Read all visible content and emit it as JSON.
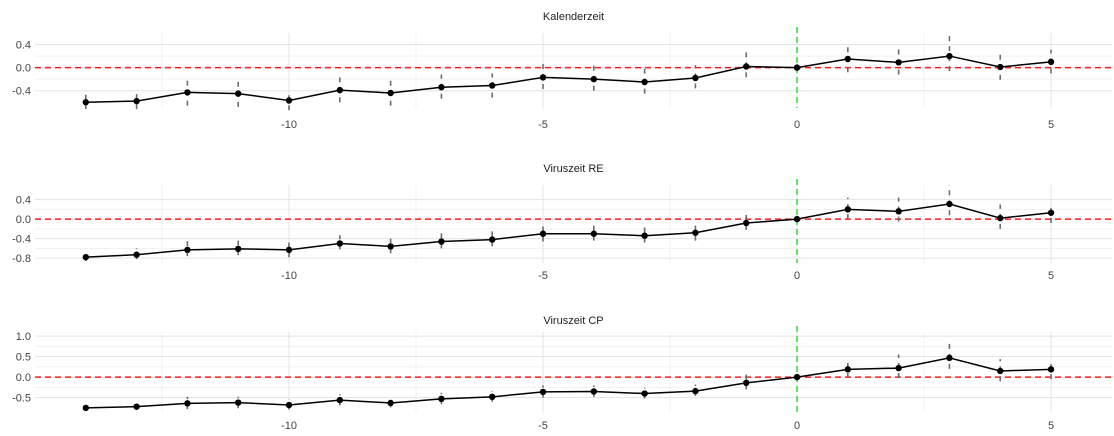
{
  "colors": {
    "line": "#000000",
    "errorbar": "#6b6b6b",
    "zero_line": "#ff1a1a",
    "event_line": "#22dd22",
    "grid_major": "#e3e3e3",
    "grid_minor": "#f1f1f1"
  },
  "chart_data": [
    {
      "type": "line",
      "title": "Kalenderzeit",
      "x": [
        -14,
        -13,
        -12,
        -11,
        -10,
        -9,
        -8,
        -7,
        -6,
        -5,
        -4,
        -3,
        -2,
        -1,
        0,
        1,
        2,
        3,
        4,
        5
      ],
      "y": [
        -0.6,
        -0.58,
        -0.43,
        -0.45,
        -0.57,
        -0.39,
        -0.44,
        -0.34,
        -0.31,
        -0.17,
        -0.2,
        -0.25,
        -0.18,
        0.02,
        0.0,
        0.15,
        0.09,
        0.2,
        0.01,
        0.1
      ],
      "err_low": [
        -0.72,
        -0.72,
        -0.66,
        -0.68,
        -0.74,
        -0.6,
        -0.66,
        -0.54,
        -0.52,
        -0.37,
        -0.4,
        -0.45,
        -0.36,
        -0.17,
        0.0,
        -0.08,
        -0.12,
        -0.06,
        -0.21,
        -0.1
      ],
      "err_high": [
        -0.47,
        -0.4,
        -0.18,
        -0.22,
        -0.4,
        -0.17,
        -0.22,
        -0.12,
        -0.1,
        0.12,
        0.05,
        -0.02,
        0.04,
        0.27,
        0.0,
        0.41,
        0.4,
        0.58,
        0.3,
        0.31
      ],
      "xlim": [
        -15.0,
        6.2
      ],
      "ylim": [
        -0.7,
        0.6
      ],
      "xticks": [
        -10,
        -5,
        0,
        5
      ],
      "yticks": [
        0.4,
        0.0,
        -0.4
      ],
      "ytick_labels": [
        "0.4",
        "0.0",
        "-0.4"
      ],
      "hline": 0,
      "vline": 0,
      "grid": true,
      "legend": "none"
    },
    {
      "type": "line",
      "title": "Viruszeit RE",
      "x": [
        -14,
        -13,
        -12,
        -11,
        -10,
        -9,
        -8,
        -7,
        -6,
        -5,
        -4,
        -3,
        -2,
        -1,
        0,
        1,
        2,
        3,
        4,
        5
      ],
      "y": [
        -0.78,
        -0.73,
        -0.63,
        -0.61,
        -0.63,
        -0.5,
        -0.56,
        -0.46,
        -0.42,
        -0.3,
        -0.3,
        -0.34,
        -0.28,
        -0.08,
        0.0,
        0.2,
        0.16,
        0.31,
        0.02,
        0.13
      ],
      "err_low": [
        -0.86,
        -0.82,
        -0.76,
        -0.74,
        -0.78,
        -0.62,
        -0.7,
        -0.6,
        -0.56,
        -0.46,
        -0.44,
        -0.48,
        -0.44,
        -0.22,
        0.0,
        0.0,
        -0.05,
        0.08,
        -0.2,
        -0.08
      ],
      "err_high": [
        -0.7,
        -0.6,
        -0.45,
        -0.44,
        -0.48,
        -0.33,
        -0.4,
        -0.28,
        -0.24,
        -0.14,
        -0.12,
        -0.16,
        -0.1,
        0.1,
        0.0,
        0.44,
        0.44,
        0.7,
        0.3,
        0.33
      ],
      "xlim": [
        -15.0,
        6.2
      ],
      "ylim": [
        -0.9,
        0.7
      ],
      "xticks": [
        -10,
        -5,
        0,
        5
      ],
      "yticks": [
        0.4,
        0.0,
        -0.4,
        -0.8
      ],
      "ytick_labels": [
        "0.4",
        "0.0",
        "-0.4",
        "-0.8"
      ],
      "hline": 0,
      "vline": 0,
      "grid": true,
      "legend": "none"
    },
    {
      "type": "line",
      "title": "Viruszeit CP",
      "x": [
        -14,
        -13,
        -12,
        -11,
        -10,
        -9,
        -8,
        -7,
        -6,
        -5,
        -4,
        -3,
        -2,
        -1,
        0,
        1,
        2,
        3,
        4,
        5
      ],
      "y": [
        -0.75,
        -0.72,
        -0.64,
        -0.62,
        -0.68,
        -0.56,
        -0.63,
        -0.53,
        -0.48,
        -0.36,
        -0.35,
        -0.4,
        -0.34,
        -0.14,
        0.0,
        0.19,
        0.22,
        0.47,
        0.15,
        0.19
      ],
      "err_low": [
        -0.82,
        -0.8,
        -0.78,
        -0.76,
        -0.79,
        -0.69,
        -0.74,
        -0.66,
        -0.6,
        -0.5,
        -0.48,
        -0.52,
        -0.46,
        -0.3,
        0.0,
        -0.02,
        -0.02,
        0.2,
        -0.1,
        -0.05
      ],
      "err_high": [
        -0.68,
        -0.62,
        -0.48,
        -0.48,
        -0.54,
        -0.42,
        -0.5,
        -0.38,
        -0.34,
        -0.2,
        -0.2,
        -0.26,
        -0.18,
        0.06,
        0.0,
        0.45,
        0.55,
        0.92,
        0.44,
        0.44
      ],
      "xlim": [
        -15.0,
        6.2
      ],
      "ylim": [
        -0.85,
        1.1
      ],
      "xticks": [
        -10,
        -5,
        0,
        5
      ],
      "yticks": [
        1.0,
        0.5,
        0.0,
        -0.5
      ],
      "ytick_labels": [
        "1.0",
        "0.5",
        "0.0",
        "-0.5"
      ],
      "hline": 0,
      "vline": 0,
      "grid": true,
      "legend": "none"
    }
  ]
}
